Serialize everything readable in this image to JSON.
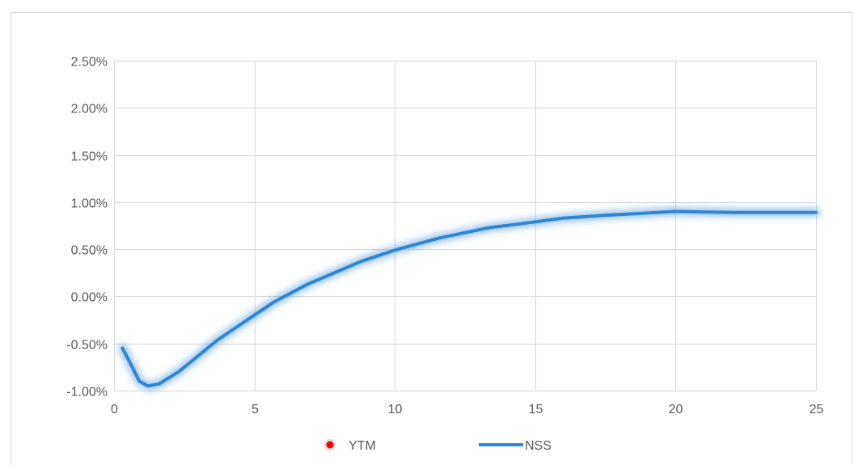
{
  "chart_data": {
    "type": "line",
    "title": "",
    "xlabel": "",
    "ylabel": "",
    "xlim": [
      0,
      25
    ],
    "ylim": [
      -1.0,
      2.5
    ],
    "x_ticks": [
      0,
      5,
      10,
      15,
      20,
      25
    ],
    "x_tick_labels": [
      "0",
      "5",
      "10",
      "15",
      "20",
      "25"
    ],
    "y_ticks": [
      -1.0,
      -0.5,
      0.0,
      0.5,
      1.0,
      1.5,
      2.0,
      2.5
    ],
    "y_tick_labels": [
      "-1.00%",
      "-0.50%",
      "0.00%",
      "0.50%",
      "1.00%",
      "1.50%",
      "2.00%",
      "2.50%"
    ],
    "grid": true,
    "legend_position": "bottom",
    "series": [
      {
        "name": "YTM",
        "type": "scatter",
        "color": "#ff0000",
        "points": []
      },
      {
        "name": "NSS",
        "type": "line",
        "color": "#2e86d4",
        "points": [
          [
            0.3,
            -0.55
          ],
          [
            0.6,
            -0.72
          ],
          [
            0.9,
            -0.9
          ],
          [
            1.2,
            -0.95
          ],
          [
            1.6,
            -0.93
          ],
          [
            2.3,
            -0.8
          ],
          [
            3.0,
            -0.63
          ],
          [
            3.7,
            -0.46
          ],
          [
            4.5,
            -0.3
          ],
          [
            5.0,
            -0.2
          ],
          [
            5.7,
            -0.06
          ],
          [
            6.9,
            0.13
          ],
          [
            7.7,
            0.23
          ],
          [
            8.8,
            0.37
          ],
          [
            10.0,
            0.49
          ],
          [
            11.6,
            0.62
          ],
          [
            13.4,
            0.73
          ],
          [
            14.5,
            0.77
          ],
          [
            16.0,
            0.83
          ],
          [
            17.5,
            0.86
          ],
          [
            20.0,
            0.9
          ],
          [
            22.0,
            0.89
          ],
          [
            25.0,
            0.89
          ]
        ]
      }
    ]
  }
}
